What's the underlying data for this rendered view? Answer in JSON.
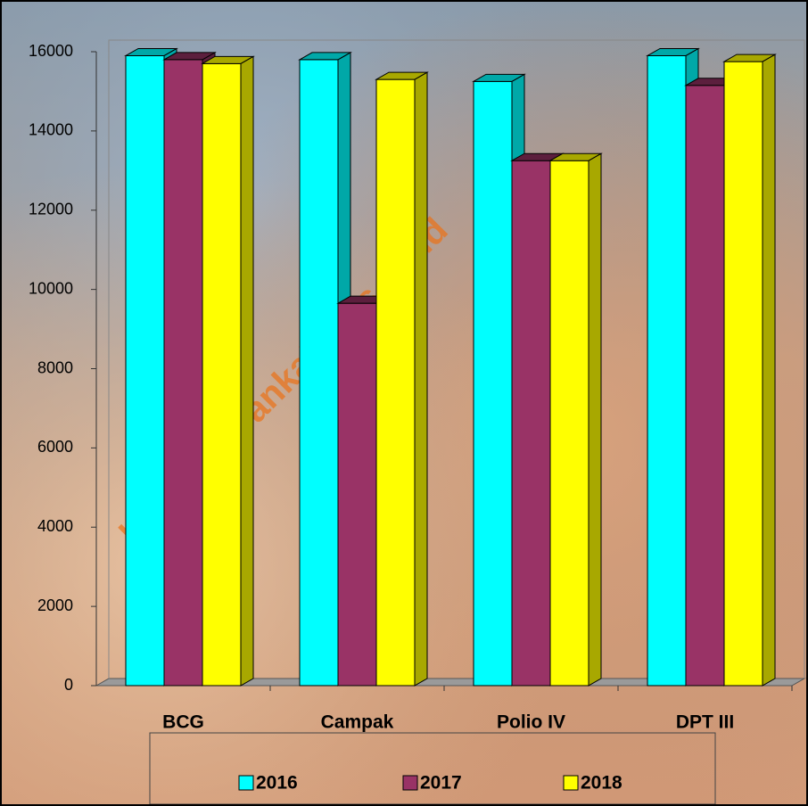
{
  "chart_data": {
    "type": "bar3d",
    "watermark": "https://tubankab.bps.go.id",
    "categories": [
      "BCG",
      "Campak",
      "Polio IV",
      "DPT III"
    ],
    "series": [
      {
        "name": "2016",
        "color": "#00ffff",
        "side": "#00a8a8",
        "values": [
          15900,
          15800,
          15250,
          15900
        ]
      },
      {
        "name": "2017",
        "color": "#993366",
        "side": "#5c1f3d",
        "values": [
          15800,
          9650,
          13250,
          15150
        ]
      },
      {
        "name": "2018",
        "color": "#ffff00",
        "side": "#a8a800",
        "values": [
          15700,
          15300,
          13250,
          15750
        ]
      }
    ],
    "ylim": [
      0,
      16000
    ],
    "yticks": [
      0,
      2000,
      4000,
      6000,
      8000,
      10000,
      12000,
      14000,
      16000
    ]
  }
}
